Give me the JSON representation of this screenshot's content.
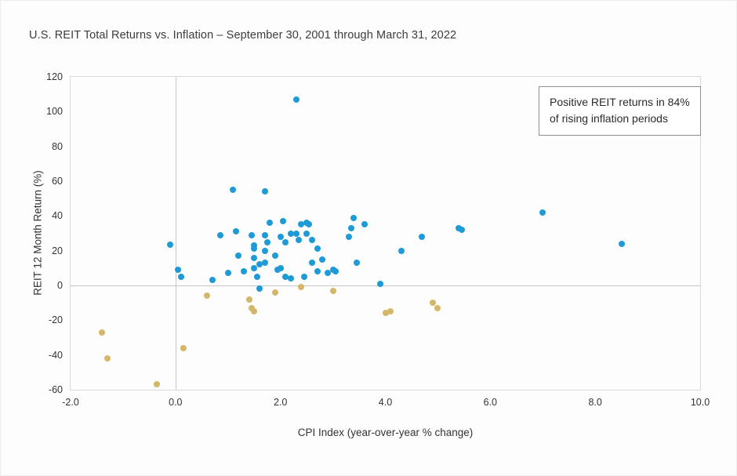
{
  "chart": {
    "title": "U.S. REIT Total Returns vs. Inflation – September 30, 2001 through March 31, 2022",
    "x_axis_label": "CPI Index (year-over-year % change)",
    "y_axis_label": "REIT 12 Month Return (%)",
    "annotation_lines": [
      "Positive REIT returns in 84%",
      "of rising inflation periods"
    ]
  },
  "chart_data": {
    "type": "scatter",
    "title": "U.S. REIT Total Returns vs. Inflation – September 30, 2001 through March 31, 2022",
    "xlabel": "CPI Index (year-over-year % change)",
    "ylabel": "REIT 12 Month Return (%)",
    "xlim": [
      -2,
      10
    ],
    "ylim": [
      -60,
      120
    ],
    "grid": "zero-lines-only",
    "legend": "none",
    "annotation": "Positive REIT returns in 84% of rising inflation periods",
    "x_ticks": [
      {
        "v": -2,
        "label": "-2.0"
      },
      {
        "v": 0,
        "label": "0.0"
      },
      {
        "v": 2,
        "label": "2.0"
      },
      {
        "v": 4,
        "label": "4.0"
      },
      {
        "v": 6,
        "label": "6.0"
      },
      {
        "v": 8,
        "label": "8.0"
      },
      {
        "v": 10,
        "label": "10.0"
      }
    ],
    "y_ticks": [
      {
        "v": 120,
        "label": "120"
      },
      {
        "v": 100,
        "label": "100"
      },
      {
        "v": 80,
        "label": "80"
      },
      {
        "v": 60,
        "label": "60"
      },
      {
        "v": 40,
        "label": "40"
      },
      {
        "v": 20,
        "label": "20"
      },
      {
        "v": 0,
        "label": "0"
      },
      {
        "v": -20,
        "label": "-20"
      },
      {
        "v": -40,
        "label": "-40"
      },
      {
        "v": -60,
        "label": "-60"
      }
    ],
    "series": [
      {
        "name": "positive-reit-returns",
        "color": "#1E9BD7",
        "points": [
          [
            -0.1,
            23.5
          ],
          [
            0.05,
            9
          ],
          [
            0.1,
            5
          ],
          [
            0.7,
            3
          ],
          [
            0.85,
            29
          ],
          [
            1.0,
            7
          ],
          [
            1.1,
            55
          ],
          [
            1.15,
            31
          ],
          [
            1.2,
            17
          ],
          [
            1.3,
            8
          ],
          [
            1.45,
            29
          ],
          [
            1.5,
            23
          ],
          [
            1.5,
            21
          ],
          [
            1.5,
            16
          ],
          [
            1.5,
            10
          ],
          [
            1.55,
            5
          ],
          [
            1.6,
            12
          ],
          [
            1.6,
            -2
          ],
          [
            1.7,
            54
          ],
          [
            1.7,
            29
          ],
          [
            1.75,
            25
          ],
          [
            1.7,
            20
          ],
          [
            1.7,
            13
          ],
          [
            1.8,
            36
          ],
          [
            1.9,
            17
          ],
          [
            1.95,
            9
          ],
          [
            2.0,
            28
          ],
          [
            2.0,
            10
          ],
          [
            2.05,
            37
          ],
          [
            2.1,
            25
          ],
          [
            2.1,
            5
          ],
          [
            2.2,
            30
          ],
          [
            2.2,
            4
          ],
          [
            2.3,
            107
          ],
          [
            2.3,
            30
          ],
          [
            2.35,
            26
          ],
          [
            2.4,
            35
          ],
          [
            2.45,
            5
          ],
          [
            2.5,
            36
          ],
          [
            2.5,
            30
          ],
          [
            2.55,
            35
          ],
          [
            2.6,
            26
          ],
          [
            2.6,
            13
          ],
          [
            2.7,
            21
          ],
          [
            2.7,
            8
          ],
          [
            2.8,
            15
          ],
          [
            2.9,
            7
          ],
          [
            3.0,
            9
          ],
          [
            3.05,
            8
          ],
          [
            3.3,
            28
          ],
          [
            3.35,
            33
          ],
          [
            3.4,
            39
          ],
          [
            3.45,
            13
          ],
          [
            3.6,
            35
          ],
          [
            3.9,
            1
          ],
          [
            4.3,
            20
          ],
          [
            4.7,
            28
          ],
          [
            5.4,
            33
          ],
          [
            5.45,
            32
          ],
          [
            7.0,
            42
          ],
          [
            8.5,
            24
          ]
        ]
      },
      {
        "name": "negative-reit-returns",
        "color": "#D3B869",
        "points": [
          [
            -1.4,
            -27
          ],
          [
            -1.3,
            -42
          ],
          [
            -0.35,
            -57
          ],
          [
            0.15,
            -36
          ],
          [
            0.6,
            -6
          ],
          [
            1.4,
            -8
          ],
          [
            1.45,
            -13
          ],
          [
            1.5,
            -15
          ],
          [
            1.9,
            -4
          ],
          [
            2.4,
            -1
          ],
          [
            3.0,
            -3
          ],
          [
            4.0,
            -16
          ],
          [
            4.1,
            -15
          ],
          [
            4.9,
            -10
          ],
          [
            5.0,
            -13
          ]
        ]
      }
    ]
  }
}
